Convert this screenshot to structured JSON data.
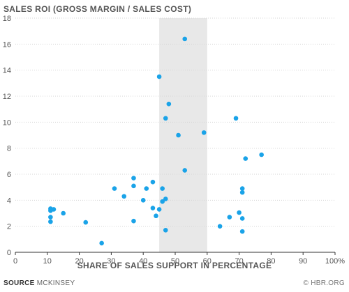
{
  "chart_data": {
    "type": "scatter",
    "title": "SALES ROI (GROSS MARGIN / SALES COST)",
    "xlabel": "SHARE OF SALES SUPPORT IN PERCENTAGE",
    "ylabel": "",
    "xlim": [
      0,
      100
    ],
    "ylim": [
      0,
      18
    ],
    "x_ticks": [
      "0",
      "10",
      "20",
      "30",
      "40",
      "50",
      "60",
      "70",
      "80",
      "90",
      "100%"
    ],
    "y_ticks": [
      "0",
      "2",
      "4",
      "6",
      "8",
      "10",
      "12",
      "14",
      "16",
      "18"
    ],
    "grid": "horizontal",
    "highlight_band": [
      45,
      60
    ],
    "point_color": "#1aa3e8",
    "band_color": "#e8e8e8",
    "points": [
      {
        "x": 53,
        "y": 16.4
      },
      {
        "x": 45,
        "y": 13.5
      },
      {
        "x": 48,
        "y": 11.4
      },
      {
        "x": 47,
        "y": 10.3
      },
      {
        "x": 51,
        "y": 9.0
      },
      {
        "x": 59,
        "y": 9.2
      },
      {
        "x": 69,
        "y": 10.3
      },
      {
        "x": 77,
        "y": 7.5
      },
      {
        "x": 72,
        "y": 7.2
      },
      {
        "x": 53,
        "y": 6.3
      },
      {
        "x": 37,
        "y": 5.7
      },
      {
        "x": 43,
        "y": 5.4
      },
      {
        "x": 31,
        "y": 4.9
      },
      {
        "x": 37,
        "y": 5.1
      },
      {
        "x": 41,
        "y": 4.9
      },
      {
        "x": 46,
        "y": 4.9
      },
      {
        "x": 71,
        "y": 4.9
      },
      {
        "x": 71,
        "y": 4.6
      },
      {
        "x": 34,
        "y": 4.3
      },
      {
        "x": 40,
        "y": 4.0
      },
      {
        "x": 47,
        "y": 4.1
      },
      {
        "x": 46,
        "y": 3.9
      },
      {
        "x": 43,
        "y": 3.4
      },
      {
        "x": 45,
        "y": 3.3
      },
      {
        "x": 44,
        "y": 2.8
      },
      {
        "x": 37,
        "y": 2.4
      },
      {
        "x": 47,
        "y": 1.7
      },
      {
        "x": 11,
        "y": 3.35
      },
      {
        "x": 11,
        "y": 3.2
      },
      {
        "x": 12,
        "y": 3.3
      },
      {
        "x": 15,
        "y": 3.0
      },
      {
        "x": 11,
        "y": 2.7
      },
      {
        "x": 11,
        "y": 2.35
      },
      {
        "x": 22,
        "y": 2.3
      },
      {
        "x": 27,
        "y": 0.7
      },
      {
        "x": 64,
        "y": 2.0
      },
      {
        "x": 67,
        "y": 2.7
      },
      {
        "x": 70,
        "y": 3.05
      },
      {
        "x": 71,
        "y": 2.6
      },
      {
        "x": 71,
        "y": 1.6
      }
    ]
  },
  "footer": {
    "source_label": "SOURCE",
    "source_text": "MCKINSEY",
    "credit": "© HBR.ORG"
  }
}
